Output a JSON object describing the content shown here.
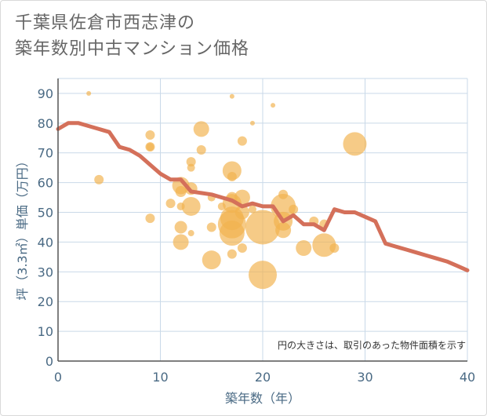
{
  "chart_data": {
    "type": "scatter",
    "title_lines": [
      "千葉県佐倉市西志津の",
      "築年数別中古マンション価格"
    ],
    "xlabel": "築年数（年）",
    "ylabel": "坪（3.3㎡）単価（万円）",
    "xlim": [
      0,
      40
    ],
    "ylim": [
      0,
      95
    ],
    "xticks": [
      0,
      10,
      20,
      30,
      40
    ],
    "yticks": [
      0,
      10,
      20,
      30,
      40,
      50,
      60,
      70,
      80,
      90
    ],
    "note": "円の大きさは、取引のあった物件面積を示す",
    "colors": {
      "bubble": "#f2b24e",
      "line": "#d4705a",
      "grid": "#c9d9e8",
      "tick": "#4a6a84"
    },
    "bubbles": [
      {
        "x": 3,
        "y": 90,
        "r": 3
      },
      {
        "x": 4,
        "y": 61,
        "r": 6
      },
      {
        "x": 9,
        "y": 76,
        "r": 6
      },
      {
        "x": 9,
        "y": 72,
        "r": 6
      },
      {
        "x": 9,
        "y": 72,
        "r": 5
      },
      {
        "x": 9,
        "y": 48,
        "r": 6
      },
      {
        "x": 11,
        "y": 53,
        "r": 6
      },
      {
        "x": 12,
        "y": 59,
        "r": 11
      },
      {
        "x": 12,
        "y": 57,
        "r": 7
      },
      {
        "x": 12,
        "y": 52,
        "r": 5
      },
      {
        "x": 12,
        "y": 45,
        "r": 8
      },
      {
        "x": 12,
        "y": 40,
        "r": 10
      },
      {
        "x": 13,
        "y": 67,
        "r": 6
      },
      {
        "x": 13,
        "y": 65,
        "r": 5
      },
      {
        "x": 13,
        "y": 58,
        "r": 8
      },
      {
        "x": 13,
        "y": 52,
        "r": 12
      },
      {
        "x": 13,
        "y": 43,
        "r": 4
      },
      {
        "x": 14,
        "y": 78,
        "r": 10
      },
      {
        "x": 14,
        "y": 71,
        "r": 6
      },
      {
        "x": 15,
        "y": 55,
        "r": 5
      },
      {
        "x": 15,
        "y": 45,
        "r": 6
      },
      {
        "x": 15,
        "y": 34,
        "r": 12
      },
      {
        "x": 16,
        "y": 52,
        "r": 5
      },
      {
        "x": 17,
        "y": 89,
        "r": 3
      },
      {
        "x": 17,
        "y": 64,
        "r": 12
      },
      {
        "x": 17,
        "y": 62,
        "r": 6
      },
      {
        "x": 17,
        "y": 55,
        "r": 7
      },
      {
        "x": 17,
        "y": 53,
        "r": 12
      },
      {
        "x": 17,
        "y": 48,
        "r": 15
      },
      {
        "x": 17,
        "y": 46,
        "r": 18
      },
      {
        "x": 17,
        "y": 43,
        "r": 16
      },
      {
        "x": 17,
        "y": 36,
        "r": 6
      },
      {
        "x": 18,
        "y": 74,
        "r": 6
      },
      {
        "x": 18,
        "y": 55,
        "r": 10
      },
      {
        "x": 18,
        "y": 50,
        "r": 9
      },
      {
        "x": 18,
        "y": 38,
        "r": 6
      },
      {
        "x": 19,
        "y": 80,
        "r": 3
      },
      {
        "x": 19,
        "y": 51,
        "r": 5
      },
      {
        "x": 20,
        "y": 45,
        "r": 22
      },
      {
        "x": 20,
        "y": 29,
        "r": 18
      },
      {
        "x": 21,
        "y": 86,
        "r": 3
      },
      {
        "x": 22,
        "y": 56,
        "r": 6
      },
      {
        "x": 22,
        "y": 52,
        "r": 16
      },
      {
        "x": 22,
        "y": 47,
        "r": 12
      },
      {
        "x": 22,
        "y": 44,
        "r": 10
      },
      {
        "x": 23,
        "y": 51,
        "r": 6
      },
      {
        "x": 24,
        "y": 38,
        "r": 10
      },
      {
        "x": 25,
        "y": 47,
        "r": 6
      },
      {
        "x": 26,
        "y": 46,
        "r": 6
      },
      {
        "x": 26,
        "y": 39,
        "r": 15
      },
      {
        "x": 27,
        "y": 38,
        "r": 6
      },
      {
        "x": 29,
        "y": 73,
        "r": 15
      }
    ],
    "trend": {
      "x": [
        0,
        1,
        2,
        3,
        4,
        5,
        6,
        7,
        8,
        9,
        10,
        11,
        12,
        13,
        14,
        15,
        16,
        17,
        18,
        19,
        20,
        21,
        22,
        23,
        24,
        25,
        26,
        27,
        28,
        29,
        30,
        31,
        32,
        33,
        34,
        35,
        36,
        37,
        38,
        39,
        40
      ],
      "y": [
        78,
        80,
        80,
        79,
        78,
        77,
        72,
        71,
        69,
        66,
        63,
        61,
        61,
        57,
        56.5,
        56,
        55,
        54,
        52,
        53,
        52,
        52,
        47,
        49,
        46,
        46,
        44,
        51,
        50,
        50,
        48.5,
        47,
        39.5,
        38.5,
        37.5,
        36.5,
        35.5,
        34.5,
        33.5,
        32,
        30.5
      ]
    }
  }
}
